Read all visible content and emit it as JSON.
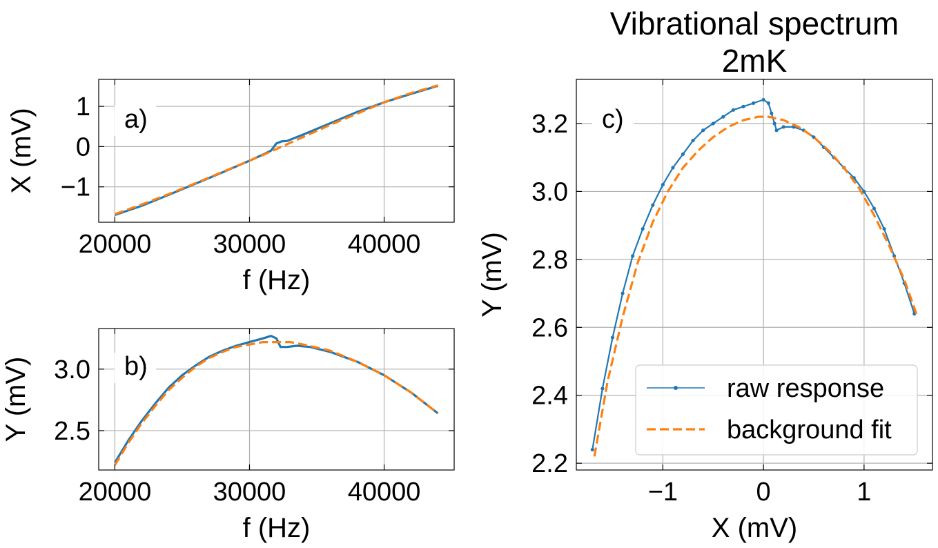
{
  "colors": {
    "raw": "#1f77b4",
    "fit": "#ff7f0e"
  },
  "chart_data": [
    {
      "id": "a",
      "type": "line",
      "panel_label": "a)",
      "title": "",
      "xlabel": "f (Hz)",
      "ylabel": "X (mV)",
      "xlim": [
        18800,
        45200
      ],
      "ylim": [
        -1.88,
        1.67
      ],
      "xticks": [
        20000,
        30000,
        40000
      ],
      "xtick_labels": [
        "20000",
        "30000",
        "40000"
      ],
      "yticks": [
        -1,
        0,
        1
      ],
      "ytick_labels": [
        "−1",
        "0",
        "1"
      ],
      "grid": true,
      "series": [
        {
          "key": "raw",
          "x": [
            20000,
            22000,
            24000,
            26000,
            28000,
            30000,
            31000,
            31600,
            32000,
            32400,
            32800,
            34000,
            36000,
            38000,
            40000,
            42000,
            44000
          ],
          "y": [
            -1.7,
            -1.47,
            -1.2,
            -0.92,
            -0.64,
            -0.35,
            -0.2,
            -0.1,
            0.08,
            0.13,
            0.14,
            0.3,
            0.58,
            0.86,
            1.1,
            1.31,
            1.51
          ]
        },
        {
          "key": "fit",
          "x": [
            20000,
            22000,
            24000,
            26000,
            28000,
            30000,
            31000,
            32000,
            34000,
            36000,
            38000,
            40000,
            42000,
            44000
          ],
          "y": [
            -1.68,
            -1.44,
            -1.18,
            -0.91,
            -0.63,
            -0.35,
            -0.21,
            -0.06,
            0.24,
            0.54,
            0.82,
            1.1,
            1.33,
            1.52
          ]
        }
      ]
    },
    {
      "id": "b",
      "type": "line",
      "panel_label": "b)",
      "title": "",
      "xlabel": "f (Hz)",
      "ylabel": "Y (mV)",
      "xlim": [
        18800,
        45200
      ],
      "ylim": [
        2.18,
        3.33
      ],
      "xticks": [
        20000,
        30000,
        40000
      ],
      "xtick_labels": [
        "20000",
        "30000",
        "40000"
      ],
      "yticks": [
        2.5,
        3.0
      ],
      "ytick_labels": [
        "2.5",
        "3.0"
      ],
      "grid": true,
      "series": [
        {
          "key": "raw",
          "x": [
            20000,
            21000,
            22000,
            23000,
            24000,
            25000,
            26000,
            27000,
            28000,
            29000,
            30000,
            31000,
            31600,
            32000,
            32300,
            32800,
            33500,
            34500,
            36000,
            38000,
            40000,
            42000,
            44000
          ],
          "y": [
            2.24,
            2.42,
            2.58,
            2.72,
            2.85,
            2.95,
            3.03,
            3.1,
            3.15,
            3.19,
            3.22,
            3.25,
            3.27,
            3.25,
            3.18,
            3.18,
            3.19,
            3.18,
            3.14,
            3.06,
            2.95,
            2.81,
            2.64
          ]
        },
        {
          "key": "fit",
          "x": [
            20000,
            21000,
            22000,
            23000,
            24000,
            25000,
            26000,
            27000,
            28000,
            29000,
            30000,
            31000,
            32000,
            33000,
            34000,
            36000,
            38000,
            40000,
            42000,
            44000
          ],
          "y": [
            2.22,
            2.4,
            2.56,
            2.7,
            2.83,
            2.93,
            3.02,
            3.09,
            3.14,
            3.18,
            3.2,
            3.22,
            3.22,
            3.22,
            3.2,
            3.15,
            3.06,
            2.95,
            2.81,
            2.64
          ]
        }
      ]
    },
    {
      "id": "c",
      "type": "line",
      "panel_label": "c)",
      "title": "Vibrational spectrum",
      "subtitle": "2mK",
      "xlabel": "X (mV)",
      "ylabel": "Y (mV)",
      "xlim": [
        -1.86,
        1.68
      ],
      "ylim": [
        2.18,
        3.33
      ],
      "xticks": [
        -1,
        0,
        1
      ],
      "xtick_labels": [
        "−1",
        "0",
        "1"
      ],
      "yticks": [
        2.2,
        2.4,
        2.6,
        2.8,
        3.0,
        3.2
      ],
      "ytick_labels": [
        "2.2",
        "2.4",
        "2.6",
        "2.8",
        "3.0",
        "3.2"
      ],
      "grid": true,
      "legend": {
        "position": "lower-right",
        "entries": [
          {
            "key": "raw",
            "label": "raw response"
          },
          {
            "key": "fit",
            "label": "background fit"
          }
        ]
      },
      "series": [
        {
          "key": "raw",
          "x": [
            -1.7,
            -1.6,
            -1.5,
            -1.4,
            -1.3,
            -1.2,
            -1.1,
            -1.0,
            -0.9,
            -0.8,
            -0.7,
            -0.6,
            -0.5,
            -0.4,
            -0.3,
            -0.2,
            -0.1,
            0.0,
            0.05,
            0.08,
            0.11,
            0.13,
            0.2,
            0.3,
            0.4,
            0.5,
            0.6,
            0.7,
            0.8,
            0.9,
            1.0,
            1.1,
            1.2,
            1.3,
            1.4,
            1.5
          ],
          "y": [
            2.24,
            2.42,
            2.57,
            2.7,
            2.81,
            2.89,
            2.96,
            3.02,
            3.07,
            3.11,
            3.15,
            3.18,
            3.2,
            3.22,
            3.24,
            3.25,
            3.26,
            3.27,
            3.26,
            3.23,
            3.2,
            3.18,
            3.19,
            3.19,
            3.18,
            3.16,
            3.13,
            3.1,
            3.07,
            3.04,
            3.0,
            2.95,
            2.89,
            2.81,
            2.73,
            2.64
          ]
        },
        {
          "key": "fit",
          "x": [
            -1.68,
            -1.55,
            -1.4,
            -1.25,
            -1.1,
            -0.95,
            -0.8,
            -0.65,
            -0.5,
            -0.35,
            -0.2,
            -0.05,
            0.05,
            0.2,
            0.35,
            0.5,
            0.65,
            0.8,
            0.95,
            1.1,
            1.25,
            1.4,
            1.52
          ],
          "y": [
            2.22,
            2.44,
            2.63,
            2.79,
            2.91,
            3.0,
            3.07,
            3.12,
            3.16,
            3.19,
            3.21,
            3.22,
            3.22,
            3.21,
            3.19,
            3.16,
            3.12,
            3.07,
            3.01,
            2.93,
            2.84,
            2.74,
            2.64
          ]
        }
      ]
    }
  ]
}
